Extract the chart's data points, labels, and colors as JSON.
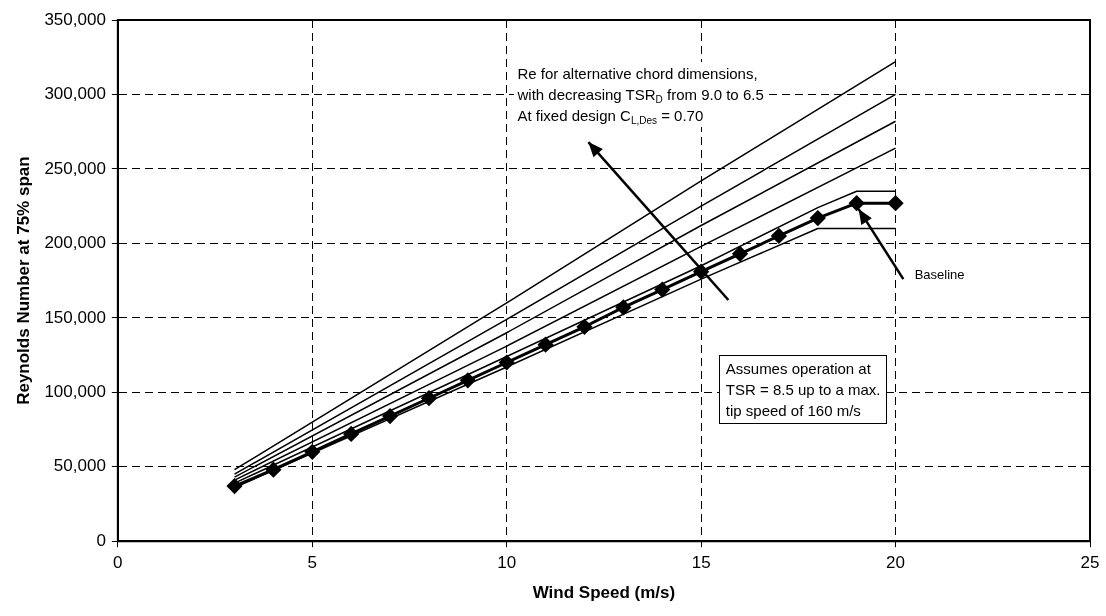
{
  "chart_data": {
    "type": "line",
    "xlabel": "Wind Speed (m/s)",
    "ylabel": "Reynolds Number at 75% span",
    "xlim": [
      0,
      25
    ],
    "xticks": [
      0,
      5,
      10,
      15,
      20,
      25
    ],
    "ylim": [
      0,
      350000
    ],
    "yticks": [
      {
        "value": 0,
        "label": "0"
      },
      {
        "value": 50000,
        "label": "50,000"
      },
      {
        "value": 100000,
        "label": "100,000"
      },
      {
        "value": 150000,
        "label": "150,000"
      },
      {
        "value": 200000,
        "label": "200,000"
      },
      {
        "value": 250000,
        "label": "250,000"
      },
      {
        "value": 300000,
        "label": "300,000"
      },
      {
        "value": 350000,
        "label": "350,000"
      }
    ],
    "grid": true,
    "legend": false,
    "line_style": "solid",
    "series": [
      {
        "color": "#000000",
        "marker": "none",
        "x": [
          3,
          10,
          15,
          20
        ],
        "values": [
          48000,
          160000,
          242000,
          322000
        ]
      },
      {
        "color": "#000000",
        "marker": "none",
        "x": [
          3,
          10,
          15,
          20
        ],
        "values": [
          45000,
          149000,
          225000,
          300000
        ]
      },
      {
        "color": "#000000",
        "marker": "none",
        "x": [
          3,
          10,
          15,
          20
        ],
        "values": [
          43000,
          140000,
          212000,
          282000
        ]
      },
      {
        "color": "#000000",
        "marker": "none",
        "x": [
          3,
          10,
          15,
          20
        ],
        "values": [
          41000,
          131000,
          198000,
          264000
        ]
      },
      {
        "color": "#000000",
        "marker": "none",
        "x": [
          3,
          10,
          15,
          18,
          19,
          20
        ],
        "values": [
          39000,
          124000,
          185000,
          224000,
          235000,
          235000
        ]
      },
      {
        "color": "#000000",
        "marker": "none",
        "x": [
          3,
          10,
          15,
          18,
          20
        ],
        "values": [
          36000,
          117000,
          176000,
          210000,
          210000
        ]
      },
      {
        "color": "#000000",
        "marker": "diamond",
        "x": [
          3,
          4,
          5,
          6,
          7,
          8,
          9,
          10,
          11,
          12,
          13,
          14,
          15,
          16,
          17,
          18,
          19,
          20
        ],
        "values": [
          37000,
          48000,
          60000,
          72000,
          84000,
          96000,
          108000,
          120000,
          132000,
          144000,
          157000,
          169000,
          181000,
          193000,
          205000,
          217000,
          227000,
          227000
        ]
      }
    ],
    "annotations": [
      "Re for alternative chord dimensions,\nwith decreasing TSR$_{D}$ from 9.0 to 6.5\nAt fixed design C$_{L,Des}$ = 0.70",
      {
        "text": "Baseline",
        "x": 19,
        "y": 227000
      },
      "Assumes operation at\nTSR = 8.5 up to a max.\ntip speed of 160 m/s"
    ]
  }
}
